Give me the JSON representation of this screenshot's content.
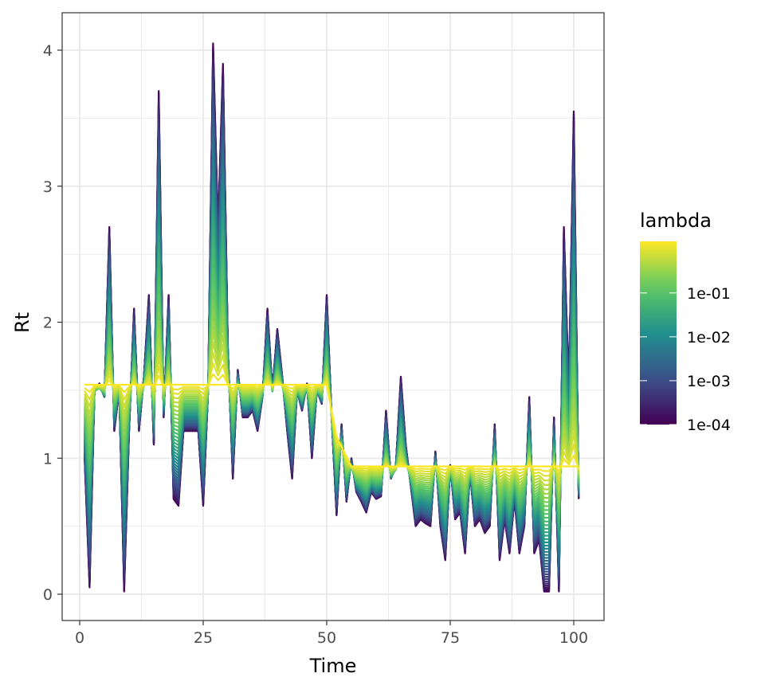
{
  "chart_data": {
    "type": "line",
    "title": "",
    "xlabel": "Time",
    "ylabel": "Rt",
    "xlim": [
      -2,
      105
    ],
    "ylim": [
      -0.2,
      4.3
    ],
    "x_ticks": [
      0,
      25,
      50,
      75,
      100
    ],
    "x_tick_labels": [
      "0",
      "25",
      "50",
      "75",
      "100"
    ],
    "y_ticks": [
      0,
      1,
      2,
      3,
      4
    ],
    "y_tick_labels": [
      "0",
      "1",
      "2",
      "3",
      "4"
    ],
    "grid": true,
    "theme": "bw",
    "legend": {
      "title": "lambda",
      "placement": "right",
      "scale": "log10",
      "range": [
        0.0001,
        1.5
      ],
      "breaks": [
        0.1,
        0.01,
        0.001,
        0.0001
      ],
      "labels": [
        "1e-01",
        "1e-02",
        "1e-03",
        "1e-04"
      ],
      "palette": [
        "#440154",
        "#3b528b",
        "#21908d",
        "#5dc963",
        "#fde725"
      ]
    },
    "series_count": 40,
    "least_smoothed_series": {
      "lambda": 0.0001,
      "x": [
        1,
        2,
        3,
        4,
        5,
        6,
        7,
        8,
        9,
        10,
        11,
        12,
        13,
        14,
        15,
        16,
        17,
        18,
        19,
        20,
        21,
        22,
        23,
        24,
        25,
        26,
        27,
        28,
        29,
        30,
        31,
        32,
        33,
        34,
        35,
        36,
        37,
        38,
        39,
        40,
        41,
        42,
        43,
        44,
        45,
        46,
        47,
        48,
        49,
        50,
        51,
        52,
        53,
        54,
        55,
        56,
        57,
        58,
        59,
        60,
        61,
        62,
        63,
        64,
        65,
        66,
        67,
        68,
        69,
        70,
        71,
        72,
        73,
        74,
        75,
        76,
        77,
        78,
        79,
        80,
        81,
        82,
        83,
        84,
        85,
        86,
        87,
        88,
        89,
        90,
        91,
        92,
        93,
        94,
        95,
        96,
        97,
        98,
        99,
        100,
        101
      ],
      "y": [
        1.0,
        0.05,
        1.5,
        1.55,
        1.45,
        2.7,
        1.2,
        1.5,
        0.02,
        1.2,
        2.1,
        1.2,
        1.6,
        2.2,
        1.1,
        3.7,
        1.3,
        2.2,
        0.7,
        0.65,
        1.2,
        1.2,
        1.2,
        1.2,
        0.65,
        1.5,
        4.05,
        2.7,
        3.9,
        1.8,
        0.85,
        1.65,
        1.3,
        1.3,
        1.35,
        1.2,
        1.45,
        2.1,
        1.5,
        1.95,
        1.6,
        1.2,
        0.85,
        1.5,
        1.35,
        1.55,
        1.0,
        1.5,
        1.4,
        2.2,
        1.3,
        0.58,
        1.25,
        0.68,
        1.0,
        0.75,
        0.68,
        0.6,
        0.75,
        0.7,
        0.72,
        1.35,
        0.85,
        0.95,
        1.6,
        1.1,
        0.8,
        0.5,
        0.55,
        0.52,
        0.5,
        1.05,
        0.5,
        0.25,
        0.95,
        0.55,
        0.6,
        0.3,
        0.9,
        0.5,
        0.55,
        0.45,
        0.5,
        1.25,
        0.25,
        0.55,
        0.3,
        0.7,
        0.3,
        0.5,
        1.45,
        0.3,
        0.4,
        0.02,
        0.02,
        1.3,
        0.02,
        2.7,
        1.5,
        3.55,
        0.7
      ]
    },
    "most_smoothed_series": {
      "lambda": 1.5,
      "x": [
        1,
        50,
        52,
        55,
        67,
        101
      ],
      "y": [
        1.48,
        1.48,
        1.1,
        0.88,
        0.88,
        0.88
      ]
    }
  }
}
